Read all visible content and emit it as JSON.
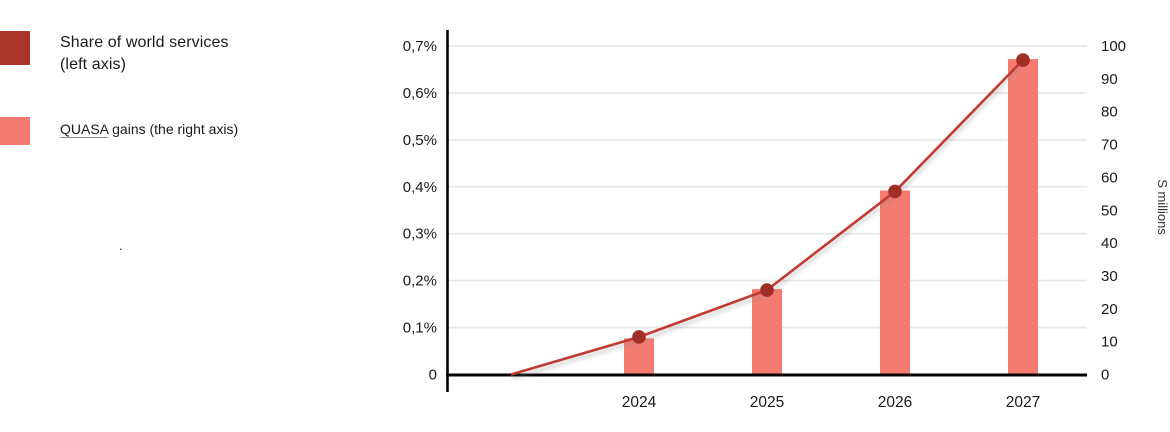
{
  "legend": {
    "items": [
      {
        "id": "share",
        "label_line1": "Share of world services",
        "label_line2": "(left axis)",
        "color": "#A9342A"
      },
      {
        "id": "quasa",
        "label_word": "QUASA",
        "label_rest": " gains (the right axis)",
        "color": "#F57B71"
      }
    ]
  },
  "stray_dot": ".",
  "chart_data": {
    "type": "combo",
    "categories": [
      "",
      "2024",
      "2025",
      "2026",
      "2027"
    ],
    "series": [
      {
        "name": "Share of world services (left axis)",
        "type": "line",
        "axis": "left",
        "unit": "%",
        "color": "#C13B31",
        "marker_color": "#A02F26",
        "values": [
          0,
          0.08,
          0.18,
          0.39,
          0.67
        ],
        "markers": [
          false,
          true,
          true,
          true,
          true
        ]
      },
      {
        "name": "QUASA gains (the right axis)",
        "type": "bar",
        "axis": "right",
        "unit": "$ millions",
        "color": "#F57B71",
        "values": [
          null,
          11,
          26,
          56,
          96
        ]
      }
    ],
    "left_axis": {
      "min": 0,
      "max": 0.7,
      "ticks": [
        {
          "label": "0",
          "value": 0
        },
        {
          "label": "0,1%",
          "value": 0.1
        },
        {
          "label": "0,2%",
          "value": 0.2
        },
        {
          "label": "0,3%",
          "value": 0.3
        },
        {
          "label": "0,4%",
          "value": 0.4
        },
        {
          "label": "0,5%",
          "value": 0.5
        },
        {
          "label": "0,6%",
          "value": 0.6
        },
        {
          "label": "0,7%",
          "value": 0.7
        }
      ]
    },
    "right_axis": {
      "min": 0,
      "max": 100,
      "title": "S millions",
      "ticks": [
        {
          "label": "0",
          "value": 0
        },
        {
          "label": "10",
          "value": 10
        },
        {
          "label": "20",
          "value": 20
        },
        {
          "label": "30",
          "value": 30
        },
        {
          "label": "40",
          "value": 40
        },
        {
          "label": "50",
          "value": 50
        },
        {
          "label": "60",
          "value": 60
        },
        {
          "label": "70",
          "value": 70
        },
        {
          "label": "80",
          "value": 80
        },
        {
          "label": "90",
          "value": 90
        },
        {
          "label": "100",
          "value": 100
        }
      ]
    },
    "grid": true,
    "legend_position": "left"
  }
}
